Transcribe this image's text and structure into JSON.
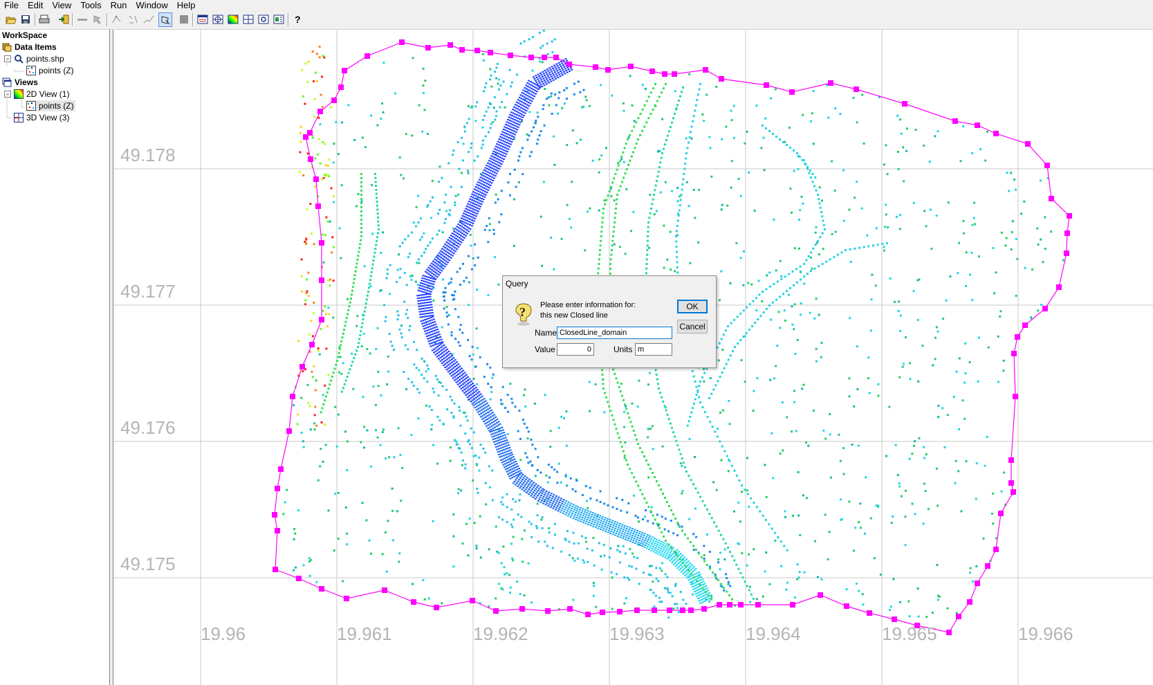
{
  "menu": [
    "File",
    "Edit",
    "View",
    "Tools",
    "Run",
    "Window",
    "Help"
  ],
  "toolbar": {
    "icons": [
      "open-icon",
      "save-icon",
      "print-icon",
      "import-icon",
      "line-icon",
      "select-icon",
      "node-icon",
      "edit-icon",
      "polygon-select-icon",
      "stop-icon",
      "layout-icon",
      "grid-icon",
      "color-map-icon",
      "table-icon",
      "zoom-icon",
      "properties-icon",
      "help-icon"
    ],
    "active": "polygon-select-icon"
  },
  "workspace": {
    "title": "WorkSpace",
    "data_items_label": "Data Items",
    "shapefile_label": "points.shp",
    "points_label": "points (Z)",
    "views_label": "Views",
    "view2d_label": "2D View (1)",
    "view2d_points_label": "points (Z)",
    "view3d_label": "3D View (3)"
  },
  "map": {
    "lat_labels": [
      "49.178",
      "49.177",
      "49.176",
      "49.175"
    ],
    "lon_labels": [
      "19.96",
      "19.961",
      "19.962",
      "19.963",
      "19.964",
      "19.965",
      "19.966"
    ],
    "boundary_color": "#ff00ff",
    "grid_color": "#c8c8c8"
  },
  "dialog": {
    "title": "Query",
    "message_line1": "Please enter information for:",
    "message_line2": "this new Closed line",
    "name_label": "Name",
    "name_value": "ClosedLine_domain",
    "value_label": "Value",
    "value_value": "0",
    "units_label": "Units",
    "units_value": "m",
    "ok_label": "OK",
    "cancel_label": "Cancel"
  }
}
